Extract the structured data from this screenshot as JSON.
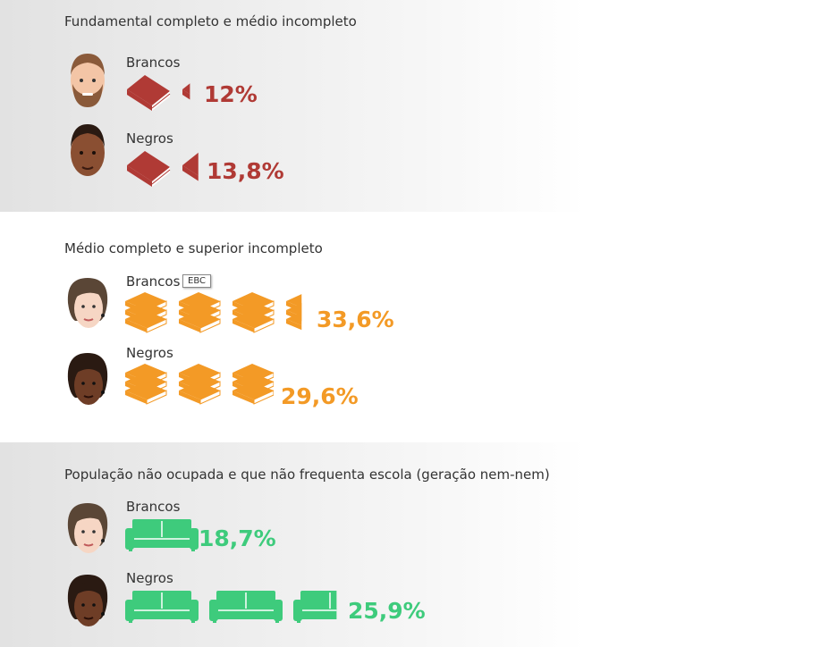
{
  "colors": {
    "red": "#b03a35",
    "orange": "#f39a26",
    "green": "#3ecb7c"
  },
  "tooltip": "EBC",
  "chart_data": [
    {
      "type": "bar",
      "title": "Fundamental completo e médio incompleto",
      "icon": "book-icon",
      "color": "#b03a35",
      "categories": [
        "Brancos",
        "Negros"
      ],
      "values": [
        12,
        13.8
      ],
      "labels": [
        "12%",
        "13,8%"
      ],
      "units_per_icon": 10
    },
    {
      "type": "bar",
      "title": "Médio completo e superior incompleto",
      "icon": "books-stack-icon",
      "color": "#f39a26",
      "categories": [
        "Brancos",
        "Negros"
      ],
      "values": [
        33.6,
        29.6
      ],
      "labels": [
        "33,6%",
        "29,6%"
      ],
      "units_per_icon": 10
    },
    {
      "type": "bar",
      "title": "População não ocupada e que não frequenta escola (geração nem-nem)",
      "icon": "sofa-icon",
      "color": "#3ecb7c",
      "categories": [
        "Brancos",
        "Negros"
      ],
      "values": [
        18.7,
        25.9
      ],
      "labels": [
        "18,7%",
        "25,9%"
      ],
      "units_per_icon": 10
    }
  ]
}
